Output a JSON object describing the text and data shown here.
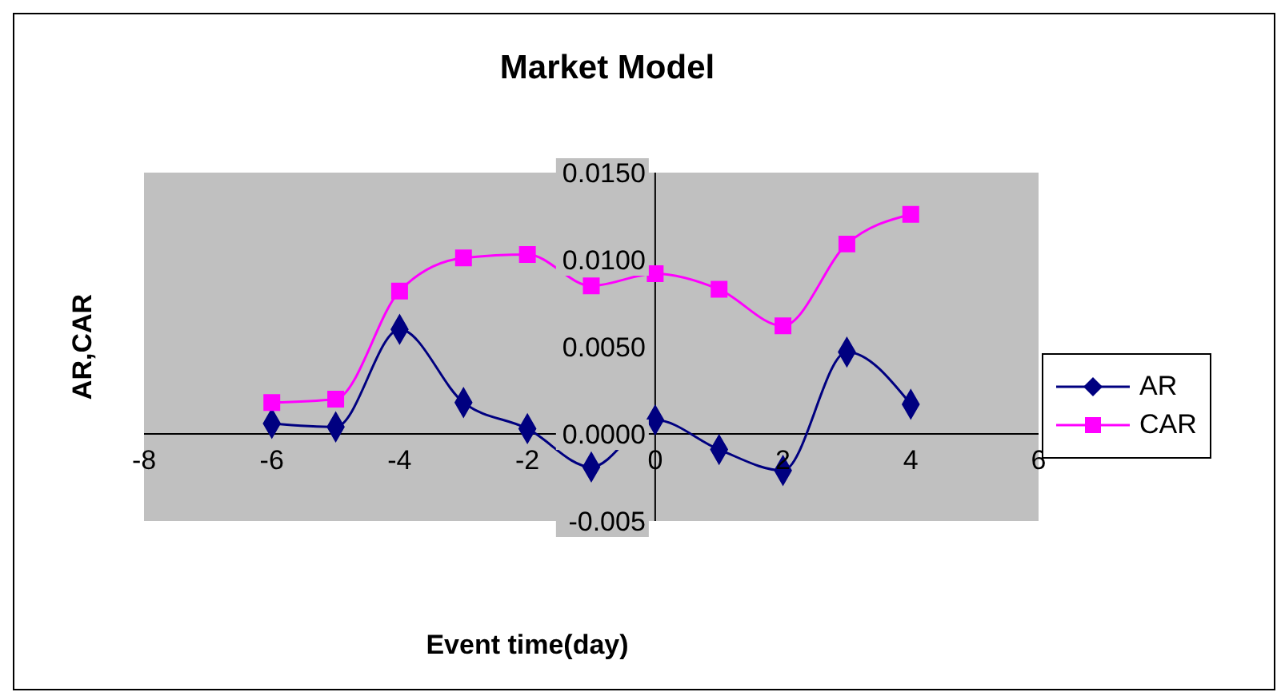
{
  "chart_data": {
    "type": "line",
    "title": "Market Model",
    "xlabel": "Event time(day)",
    "ylabel": "AR,CAR",
    "x": [
      -6,
      -5,
      -4,
      -3,
      -2,
      -1,
      0,
      1,
      2,
      3,
      4
    ],
    "series": [
      {
        "name": "AR",
        "color": "#000080",
        "marker": "diamond",
        "values": [
          0.0006,
          0.0004,
          0.006,
          0.0018,
          0.0003,
          -0.0019,
          0.0008,
          -0.0009,
          -0.0021,
          0.0047,
          0.0017
        ]
      },
      {
        "name": "CAR",
        "color": "#ff00ff",
        "marker": "square",
        "values": [
          0.0018,
          0.002,
          0.0082,
          0.0101,
          0.0103,
          0.0085,
          0.0092,
          0.0083,
          0.0062,
          0.0109,
          0.0126
        ]
      }
    ],
    "xlim": [
      -8,
      6
    ],
    "xticks": [
      -8,
      -6,
      -4,
      -2,
      0,
      2,
      4,
      6
    ],
    "ylim": [
      -0.005,
      0.015
    ],
    "yticks": [
      {
        "value": -0.005,
        "label": "-0.005"
      },
      {
        "value": 0,
        "label": "0.0000"
      },
      {
        "value": 0.005,
        "label": "0.0050"
      },
      {
        "value": 0.01,
        "label": "0.0100"
      },
      {
        "value": 0.015,
        "label": "0.0150"
      }
    ],
    "legend": "right",
    "grid": false,
    "line_style": "solid"
  }
}
